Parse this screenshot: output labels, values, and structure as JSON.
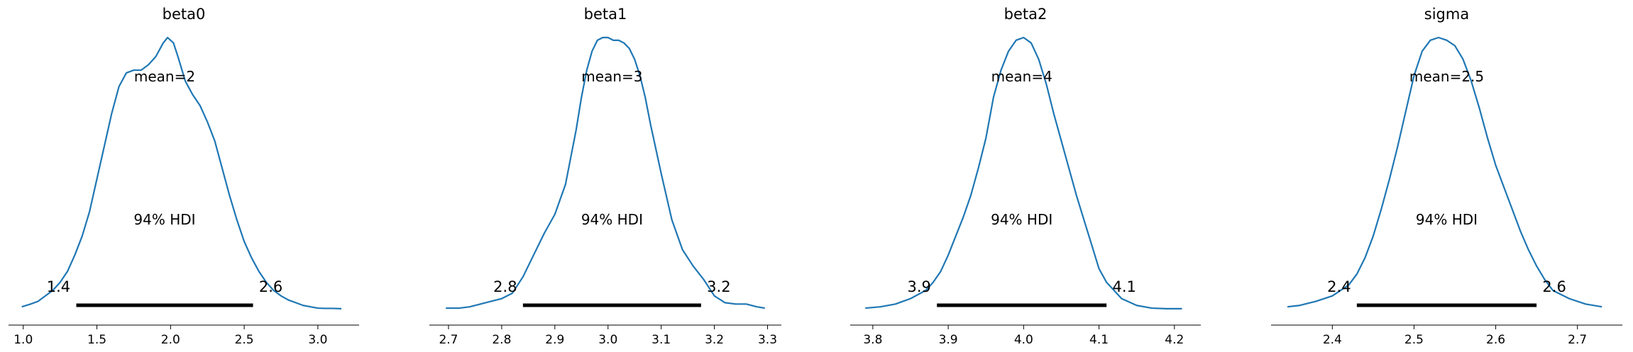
{
  "figure": {
    "colors": {
      "curve": "#1f77b4",
      "hdi": "#000000",
      "axis": "#000000"
    },
    "hdi_label": "94% HDI"
  },
  "chart_data": [
    {
      "type": "line",
      "title": "beta0",
      "mean_label": "mean=2",
      "hdi": [
        1.36,
        2.56
      ],
      "hdi_labels": [
        "1.4",
        "2.6"
      ],
      "xlim": [
        0.9,
        3.28
      ],
      "ylim": [
        0,
        1.0
      ],
      "xticks": [
        1.0,
        1.5,
        2.0,
        2.5,
        3.0
      ],
      "xtick_labels": [
        "1.0",
        "1.5",
        "2.0",
        "2.5",
        "3.0"
      ],
      "series": [
        {
          "x": [
            0.99,
            1.05,
            1.1,
            1.15,
            1.2,
            1.25,
            1.3,
            1.35,
            1.4,
            1.45,
            1.5,
            1.55,
            1.6,
            1.65,
            1.7,
            1.75,
            1.8,
            1.85,
            1.9,
            1.95,
            1.98,
            2.02,
            2.05,
            2.1,
            2.15,
            2.2,
            2.25,
            2.3,
            2.35,
            2.4,
            2.45,
            2.5,
            2.55,
            2.6,
            2.65,
            2.7,
            2.75,
            2.8,
            2.85,
            2.9,
            2.95,
            3.0,
            3.05,
            3.1,
            3.16
          ],
          "y": [
            0.01,
            0.02,
            0.03,
            0.05,
            0.07,
            0.1,
            0.14,
            0.2,
            0.27,
            0.36,
            0.48,
            0.6,
            0.72,
            0.82,
            0.87,
            0.88,
            0.88,
            0.9,
            0.93,
            0.98,
            1.0,
            0.98,
            0.93,
            0.84,
            0.79,
            0.75,
            0.69,
            0.62,
            0.52,
            0.42,
            0.33,
            0.25,
            0.19,
            0.14,
            0.1,
            0.07,
            0.05,
            0.035,
            0.025,
            0.015,
            0.01,
            0.005,
            0.004,
            0.004,
            0.003
          ]
        }
      ]
    },
    {
      "type": "line",
      "title": "beta1",
      "mean_label": "mean=3",
      "hdi": [
        2.84,
        3.175
      ],
      "hdi_labels": [
        "2.8",
        "3.2"
      ],
      "xlim": [
        2.664,
        3.326
      ],
      "ylim": [
        0,
        1.0
      ],
      "xticks": [
        2.7,
        2.8,
        2.9,
        3.0,
        3.1,
        3.2,
        3.3
      ],
      "xtick_labels": [
        "2.7",
        "2.8",
        "2.9",
        "3.0",
        "3.1",
        "3.2",
        "3.3"
      ],
      "series": [
        {
          "x": [
            2.695,
            2.72,
            2.74,
            2.76,
            2.78,
            2.8,
            2.82,
            2.84,
            2.86,
            2.88,
            2.9,
            2.92,
            2.94,
            2.95,
            2.96,
            2.97,
            2.98,
            2.99,
            3.0,
            3.01,
            3.02,
            3.03,
            3.04,
            3.05,
            3.06,
            3.07,
            3.08,
            3.1,
            3.12,
            3.14,
            3.16,
            3.18,
            3.2,
            3.22,
            3.24,
            3.26,
            3.28,
            3.295
          ],
          "y": [
            0.005,
            0.005,
            0.01,
            0.02,
            0.03,
            0.04,
            0.06,
            0.12,
            0.2,
            0.28,
            0.35,
            0.46,
            0.66,
            0.78,
            0.88,
            0.95,
            0.99,
            1.0,
            1.0,
            0.99,
            0.99,
            0.98,
            0.96,
            0.92,
            0.86,
            0.78,
            0.68,
            0.5,
            0.33,
            0.22,
            0.16,
            0.11,
            0.05,
            0.025,
            0.02,
            0.02,
            0.01,
            0.005
          ]
        }
      ]
    },
    {
      "type": "line",
      "title": "beta2",
      "mean_label": "mean=4",
      "hdi": [
        3.885,
        4.11
      ],
      "hdi_labels": [
        "3.9",
        "4.1"
      ],
      "xlim": [
        3.77,
        4.235
      ],
      "ylim": [
        0,
        1.0
      ],
      "xticks": [
        3.8,
        3.9,
        4.0,
        4.1,
        4.2
      ],
      "xtick_labels": [
        "3.8",
        "3.9",
        "4.0",
        "4.1",
        "4.2"
      ],
      "series": [
        {
          "x": [
            3.79,
            3.81,
            3.83,
            3.85,
            3.87,
            3.88,
            3.89,
            3.9,
            3.91,
            3.92,
            3.93,
            3.94,
            3.95,
            3.96,
            3.97,
            3.98,
            3.99,
            4.0,
            4.01,
            4.02,
            4.03,
            4.04,
            4.05,
            4.06,
            4.07,
            4.08,
            4.09,
            4.1,
            4.11,
            4.12,
            4.13,
            4.15,
            4.17,
            4.19,
            4.21
          ],
          "y": [
            0.005,
            0.01,
            0.02,
            0.04,
            0.07,
            0.1,
            0.14,
            0.2,
            0.27,
            0.34,
            0.42,
            0.52,
            0.63,
            0.78,
            0.88,
            0.95,
            0.99,
            1.0,
            0.98,
            0.92,
            0.83,
            0.72,
            0.62,
            0.52,
            0.42,
            0.33,
            0.24,
            0.15,
            0.1,
            0.07,
            0.04,
            0.015,
            0.005,
            0.003,
            0.003
          ]
        }
      ]
    },
    {
      "type": "line",
      "title": "sigma",
      "mean_label": "mean=2.5",
      "hdi": [
        2.43,
        2.65
      ],
      "hdi_labels": [
        "2.4",
        "2.6"
      ],
      "xlim": [
        2.325,
        2.755
      ],
      "ylim": [
        0,
        1.0
      ],
      "xticks": [
        2.4,
        2.5,
        2.6,
        2.7
      ],
      "xtick_labels": [
        "2.4",
        "2.5",
        "2.6",
        "2.7"
      ],
      "series": [
        {
          "x": [
            2.345,
            2.36,
            2.38,
            2.4,
            2.42,
            2.43,
            2.44,
            2.45,
            2.46,
            2.47,
            2.48,
            2.49,
            2.5,
            2.51,
            2.52,
            2.53,
            2.54,
            2.55,
            2.56,
            2.57,
            2.58,
            2.59,
            2.6,
            2.61,
            2.62,
            2.63,
            2.64,
            2.65,
            2.66,
            2.67,
            2.69,
            2.71,
            2.73
          ],
          "y": [
            0.01,
            0.015,
            0.03,
            0.05,
            0.09,
            0.13,
            0.19,
            0.27,
            0.37,
            0.48,
            0.6,
            0.73,
            0.86,
            0.95,
            0.99,
            1.0,
            0.99,
            0.97,
            0.92,
            0.84,
            0.74,
            0.63,
            0.53,
            0.45,
            0.37,
            0.29,
            0.22,
            0.16,
            0.11,
            0.07,
            0.04,
            0.02,
            0.01
          ]
        }
      ]
    }
  ]
}
